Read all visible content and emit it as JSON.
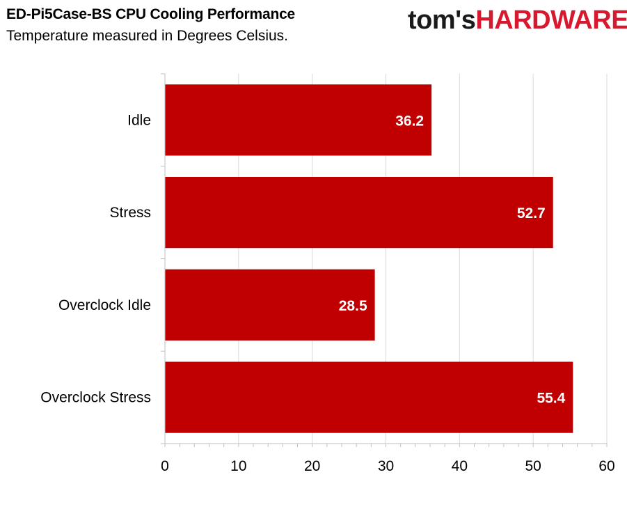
{
  "header": {
    "title": "ED-Pi5Case-BS CPU Cooling Performance",
    "subtitle": "Temperature measured in Degrees Celsius."
  },
  "logo": {
    "part1": "tom's",
    "part2": "HARDWARE",
    "color_dark": "#1a1a1a",
    "color_accent": "#d7192f"
  },
  "chart_data": {
    "type": "bar",
    "orientation": "horizontal",
    "title": "ED-Pi5Case-BS CPU Cooling Performance",
    "subtitle": "Temperature measured in Degrees Celsius.",
    "categories": [
      "Idle",
      "Stress",
      "Overclock Idle",
      "Overclock Stress"
    ],
    "values": [
      36.2,
      52.7,
      28.5,
      55.4
    ],
    "xlim": [
      0,
      60
    ],
    "xticks": [
      0,
      10,
      20,
      30,
      40,
      50,
      60
    ],
    "grid": "vertical",
    "bar_color": "#c00000",
    "data_label_color": "#ffffff",
    "legend": "none"
  }
}
